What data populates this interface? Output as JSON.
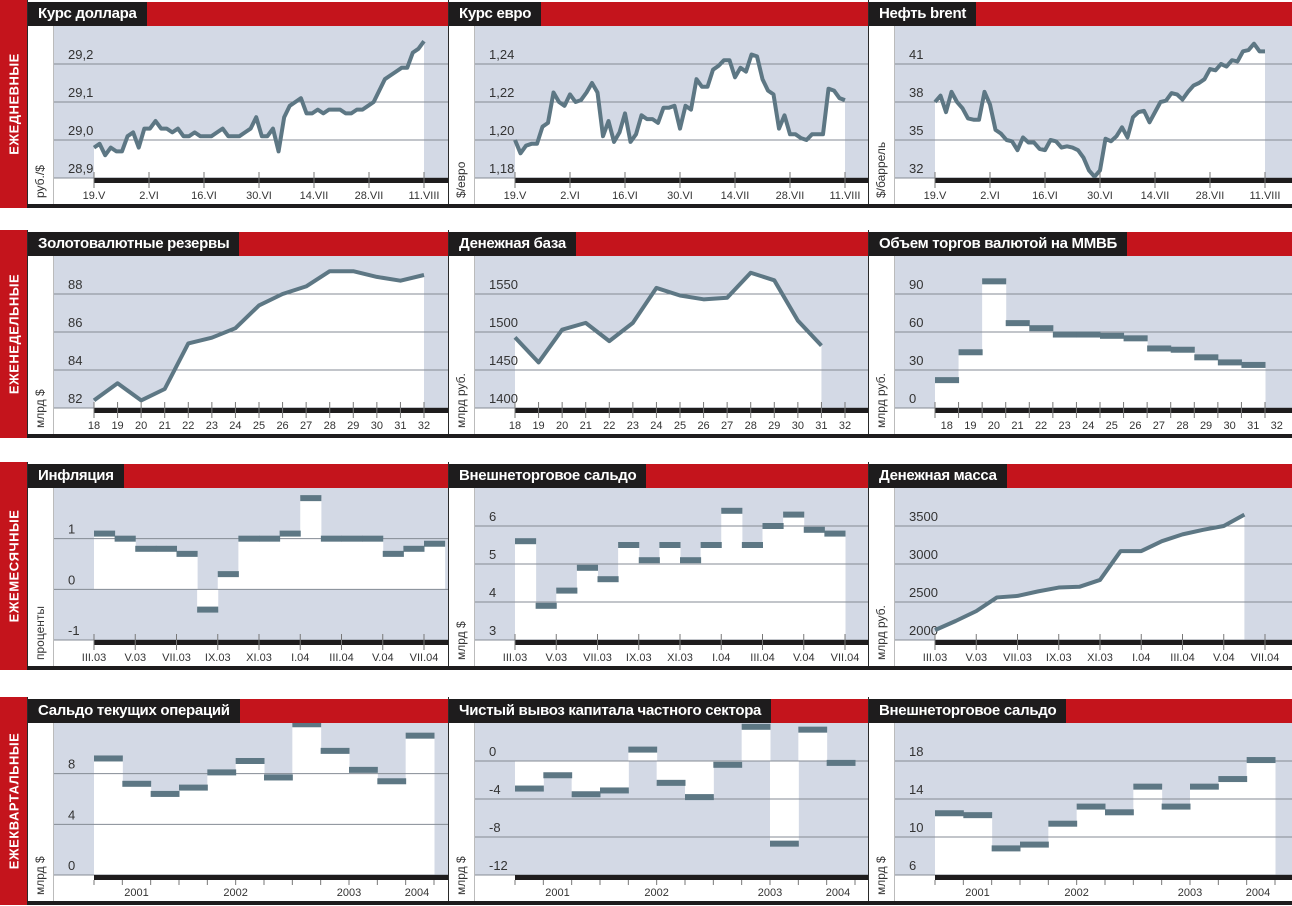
{
  "colors": {
    "band": "#c4141c",
    "title_bg": "#1e1c1d",
    "plot_bg": "#d3d9e5",
    "series": "#5d7784",
    "grid": "#858b94",
    "axis": "#1e1c1d"
  },
  "rows": [
    {
      "label": "ЕЖЕДНЕВНЫЕ"
    },
    {
      "label": "ЕЖЕНЕДЕЛЬНЫЕ"
    },
    {
      "label": "ЕЖЕМЕСЯЧНЫЕ"
    },
    {
      "label": "ЕЖЕКВАРТАЛЬНЫЕ"
    }
  ],
  "chart_data": [
    {
      "title": "Курс доллара",
      "ylabel": "руб./$",
      "type": "line",
      "xdomain": [
        0,
        84
      ],
      "x_even": true,
      "values": [
        28.98,
        28.99,
        28.96,
        28.98,
        28.97,
        28.97,
        29.01,
        29.02,
        28.98,
        29.03,
        29.03,
        29.05,
        29.03,
        29.03,
        29.02,
        29.03,
        29.01,
        29.01,
        29.02,
        29.01,
        29.01,
        29.01,
        29.02,
        29.03,
        29.01,
        29.01,
        29.01,
        29.02,
        29.03,
        29.06,
        29.01,
        29.01,
        29.03,
        28.97,
        29.06,
        29.09,
        29.1,
        29.11,
        29.07,
        29.07,
        29.08,
        29.07,
        29.08,
        29.08,
        29.08,
        29.07,
        29.07,
        29.08,
        29.08,
        29.09,
        29.1,
        29.13,
        29.16,
        29.17,
        29.18,
        29.19,
        29.19,
        29.23,
        29.24,
        29.26
      ],
      "ylim": [
        28.9,
        29.3
      ],
      "yticks": [
        {
          "value": 28.9,
          "label": "28,9"
        },
        {
          "value": 29.0,
          "label": "29,0"
        },
        {
          "value": 29.1,
          "label": "29,1"
        },
        {
          "value": 29.2,
          "label": "29,2"
        }
      ],
      "xticks": [
        {
          "x": 0,
          "label": "19.V"
        },
        {
          "x": 14,
          "label": "2.VI"
        },
        {
          "x": 28,
          "label": "16.VI"
        },
        {
          "x": 42,
          "label": "30.VI"
        },
        {
          "x": 56,
          "label": "14.VII"
        },
        {
          "x": 70,
          "label": "28.VII"
        },
        {
          "x": 84,
          "label": "11.VIII"
        }
      ]
    },
    {
      "title": "Курс евро",
      "ylabel": "$/евро",
      "type": "line",
      "xdomain": [
        0,
        84
      ],
      "x_even": true,
      "values": [
        1.2,
        1.193,
        1.197,
        1.198,
        1.198,
        1.207,
        1.209,
        1.225,
        1.22,
        1.218,
        1.224,
        1.22,
        1.221,
        1.225,
        1.23,
        1.225,
        1.202,
        1.21,
        1.199,
        1.204,
        1.214,
        1.199,
        1.203,
        1.213,
        1.211,
        1.211,
        1.209,
        1.217,
        1.217,
        1.218,
        1.206,
        1.218,
        1.216,
        1.232,
        1.228,
        1.228,
        1.237,
        1.239,
        1.242,
        1.242,
        1.233,
        1.238,
        1.236,
        1.245,
        1.244,
        1.232,
        1.226,
        1.224,
        1.206,
        1.213,
        1.203,
        1.203,
        1.201,
        1.2,
        1.203,
        1.203,
        1.203,
        1.227,
        1.226,
        1.222,
        1.221
      ],
      "ylim": [
        1.18,
        1.26
      ],
      "yticks": [
        {
          "value": 1.18,
          "label": "1,18"
        },
        {
          "value": 1.2,
          "label": "1,20"
        },
        {
          "value": 1.22,
          "label": "1,22"
        },
        {
          "value": 1.24,
          "label": "1,24"
        }
      ],
      "xticks": [
        {
          "x": 0,
          "label": "19.V"
        },
        {
          "x": 14,
          "label": "2.VI"
        },
        {
          "x": 28,
          "label": "16.VI"
        },
        {
          "x": 42,
          "label": "30.VI"
        },
        {
          "x": 56,
          "label": "14.VII"
        },
        {
          "x": 70,
          "label": "28.VII"
        },
        {
          "x": 84,
          "label": "11.VIII"
        }
      ]
    },
    {
      "title": "Нефть brent",
      "ylabel": "$/баррель",
      "type": "line",
      "xdomain": [
        0,
        84
      ],
      "x_even": true,
      "values": [
        38.0,
        38.5,
        37.2,
        38.8,
        38.0,
        37.5,
        36.7,
        36.6,
        36.6,
        38.8,
        37.8,
        35.8,
        35.5,
        35.0,
        34.9,
        34.2,
        35.2,
        34.8,
        34.8,
        34.3,
        34.2,
        35.0,
        34.9,
        34.4,
        34.5,
        34.4,
        34.2,
        33.6,
        32.6,
        32.1,
        32.6,
        35.1,
        34.9,
        35.3,
        36.0,
        35.2,
        36.8,
        37.2,
        37.3,
        36.4,
        37.2,
        38.0,
        38.1,
        38.7,
        38.6,
        38.2,
        38.8,
        39.3,
        39.5,
        39.8,
        40.6,
        40.5,
        41.0,
        40.8,
        41.3,
        41.2,
        42.0,
        42.1,
        42.6,
        42.0,
        42.0
      ],
      "ylim": [
        32,
        44
      ],
      "yticks": [
        {
          "value": 32,
          "label": "32"
        },
        {
          "value": 35,
          "label": "35"
        },
        {
          "value": 38,
          "label": "38"
        },
        {
          "value": 41,
          "label": "41"
        }
      ],
      "xticks": [
        {
          "x": 0,
          "label": "19.V"
        },
        {
          "x": 14,
          "label": "2.VI"
        },
        {
          "x": 28,
          "label": "16.VI"
        },
        {
          "x": 42,
          "label": "30.VI"
        },
        {
          "x": 56,
          "label": "14.VII"
        },
        {
          "x": 70,
          "label": "28.VII"
        },
        {
          "x": 84,
          "label": "11.VIII"
        }
      ]
    },
    {
      "title": "Золотовалютные резервы",
      "ylabel": "млрд $",
      "type": "line",
      "xdomain": [
        18,
        32
      ],
      "x_start": 18,
      "values": [
        82.4,
        83.3,
        82.4,
        83.0,
        85.4,
        85.7,
        86.2,
        87.4,
        88.0,
        88.4,
        89.2,
        89.2,
        88.9,
        88.7,
        89.0
      ],
      "ylim": [
        82,
        90
      ],
      "yticks": [
        {
          "value": 82,
          "label": "82"
        },
        {
          "value": 84,
          "label": "84"
        },
        {
          "value": 86,
          "label": "86"
        },
        {
          "value": 88,
          "label": "88"
        }
      ],
      "xticks": [
        {
          "x": 18,
          "label": "18"
        },
        {
          "x": 19,
          "label": "19"
        },
        {
          "x": 20,
          "label": "20"
        },
        {
          "x": 21,
          "label": "21"
        },
        {
          "x": 22,
          "label": "22"
        },
        {
          "x": 23,
          "label": "23"
        },
        {
          "x": 24,
          "label": "24"
        },
        {
          "x": 25,
          "label": "25"
        },
        {
          "x": 26,
          "label": "26"
        },
        {
          "x": 27,
          "label": "27"
        },
        {
          "x": 28,
          "label": "28"
        },
        {
          "x": 29,
          "label": "29"
        },
        {
          "x": 30,
          "label": "30"
        },
        {
          "x": 31,
          "label": "31"
        },
        {
          "x": 32,
          "label": "32"
        }
      ]
    },
    {
      "title": "Денежная база",
      "ylabel": "млрд руб.",
      "type": "line",
      "xdomain": [
        18,
        32
      ],
      "x_start": 18,
      "values": [
        1493,
        1460,
        1503,
        1512,
        1488,
        1512,
        1558,
        1548,
        1543,
        1545,
        1578,
        1568,
        1515,
        1482
      ],
      "ylim": [
        1400,
        1600
      ],
      "yticks": [
        {
          "value": 1400,
          "label": "1400"
        },
        {
          "value": 1450,
          "label": "1450"
        },
        {
          "value": 1500,
          "label": "1500"
        },
        {
          "value": 1550,
          "label": "1550"
        }
      ],
      "xticks": [
        {
          "x": 18,
          "label": "18"
        },
        {
          "x": 19,
          "label": "19"
        },
        {
          "x": 20,
          "label": "20"
        },
        {
          "x": 21,
          "label": "21"
        },
        {
          "x": 22,
          "label": "22"
        },
        {
          "x": 23,
          "label": "23"
        },
        {
          "x": 24,
          "label": "24"
        },
        {
          "x": 25,
          "label": "25"
        },
        {
          "x": 26,
          "label": "26"
        },
        {
          "x": 27,
          "label": "27"
        },
        {
          "x": 28,
          "label": "28"
        },
        {
          "x": 29,
          "label": "29"
        },
        {
          "x": 30,
          "label": "30"
        },
        {
          "x": 31,
          "label": "31"
        },
        {
          "x": 32,
          "label": "32"
        }
      ]
    },
    {
      "title": "Объем торгов валютой на ММВБ",
      "ylabel": "млрд руб.",
      "type": "step",
      "xdomain": [
        18,
        32
      ],
      "x_start": 18,
      "step_label_offset": 0.5,
      "values": [
        22,
        44,
        100,
        67,
        63,
        58,
        58,
        57,
        55,
        47,
        46,
        40,
        36,
        34
      ],
      "ylim": [
        0,
        120
      ],
      "yticks": [
        {
          "value": 0,
          "label": "0"
        },
        {
          "value": 30,
          "label": "30"
        },
        {
          "value": 60,
          "label": "60"
        },
        {
          "value": 90,
          "label": "90"
        }
      ],
      "xticks": [
        {
          "x": 18.5,
          "label": "18"
        },
        {
          "x": 19.5,
          "label": "19"
        },
        {
          "x": 20.5,
          "label": "20"
        },
        {
          "x": 21.5,
          "label": "21"
        },
        {
          "x": 22.5,
          "label": "22"
        },
        {
          "x": 23.5,
          "label": "23"
        },
        {
          "x": 24.5,
          "label": "24"
        },
        {
          "x": 25.5,
          "label": "25"
        },
        {
          "x": 26.5,
          "label": "26"
        },
        {
          "x": 27.5,
          "label": "27"
        },
        {
          "x": 28.5,
          "label": "28"
        },
        {
          "x": 29.5,
          "label": "29"
        },
        {
          "x": 30.5,
          "label": "30"
        },
        {
          "x": 31.5,
          "label": "31"
        },
        {
          "x": 32.5,
          "label": "32"
        }
      ]
    },
    {
      "title": "Инфляция",
      "ylabel": "проценты",
      "type": "step",
      "xdomain": [
        0,
        16
      ],
      "x_start": 0,
      "values": [
        1.1,
        1.0,
        0.8,
        0.8,
        0.7,
        -0.4,
        0.3,
        1.0,
        1.0,
        1.1,
        1.8,
        1.0,
        1.0,
        1.0,
        0.7,
        0.8,
        0.9
      ],
      "ylim": [
        -1,
        2
      ],
      "yticks": [
        {
          "value": -1,
          "label": "-1"
        },
        {
          "value": 0,
          "label": "0"
        },
        {
          "value": 1,
          "label": "1"
        }
      ],
      "xticks": [
        {
          "x": 0,
          "label": "III.03"
        },
        {
          "x": 2,
          "label": "V.03"
        },
        {
          "x": 4,
          "label": "VII.03"
        },
        {
          "x": 6,
          "label": "IX.03"
        },
        {
          "x": 8,
          "label": "XI.03"
        },
        {
          "x": 10,
          "label": "I.04"
        },
        {
          "x": 12,
          "label": "III.04"
        },
        {
          "x": 14,
          "label": "V.04"
        },
        {
          "x": 16,
          "label": "VII.04"
        }
      ]
    },
    {
      "title": "Внешнеторговое сальдо",
      "ylabel": "млрд $",
      "type": "step",
      "xdomain": [
        0,
        16
      ],
      "x_start": 0,
      "values": [
        5.6,
        3.9,
        4.3,
        4.9,
        4.6,
        5.5,
        5.1,
        5.5,
        5.1,
        5.5,
        6.4,
        5.5,
        6.0,
        6.3,
        5.9,
        5.8
      ],
      "ylim": [
        3,
        7
      ],
      "yticks": [
        {
          "value": 3,
          "label": "3"
        },
        {
          "value": 4,
          "label": "4"
        },
        {
          "value": 5,
          "label": "5"
        },
        {
          "value": 6,
          "label": "6"
        }
      ],
      "xticks": [
        {
          "x": 0,
          "label": "III.03"
        },
        {
          "x": 2,
          "label": "V.03"
        },
        {
          "x": 4,
          "label": "VII.03"
        },
        {
          "x": 6,
          "label": "IX.03"
        },
        {
          "x": 8,
          "label": "XI.03"
        },
        {
          "x": 10,
          "label": "I.04"
        },
        {
          "x": 12,
          "label": "III.04"
        },
        {
          "x": 14,
          "label": "V.04"
        },
        {
          "x": 16,
          "label": "VII.04"
        }
      ]
    },
    {
      "title": "Денежная масса",
      "ylabel": "млрд руб.",
      "type": "line",
      "xdomain": [
        0,
        16
      ],
      "x_start": 0,
      "values": [
        2130,
        2250,
        2380,
        2560,
        2580,
        2640,
        2690,
        2700,
        2790,
        3170,
        3170,
        3300,
        3390,
        3450,
        3500,
        3650
      ],
      "ylim": [
        2000,
        4000
      ],
      "yticks": [
        {
          "value": 2000,
          "label": "2000"
        },
        {
          "value": 2500,
          "label": "2500"
        },
        {
          "value": 3000,
          "label": "3000"
        },
        {
          "value": 3500,
          "label": "3500"
        }
      ],
      "xticks": [
        {
          "x": 0,
          "label": "III.03"
        },
        {
          "x": 2,
          "label": "V.03"
        },
        {
          "x": 4,
          "label": "VII.03"
        },
        {
          "x": 6,
          "label": "IX.03"
        },
        {
          "x": 8,
          "label": "XI.03"
        },
        {
          "x": 10,
          "label": "I.04"
        },
        {
          "x": 12,
          "label": "III.04"
        },
        {
          "x": 14,
          "label": "V.04"
        },
        {
          "x": 16,
          "label": "VII.04"
        }
      ]
    },
    {
      "title": "Сальдо текущих операций",
      "ylabel": "млрд $",
      "type": "step",
      "xdomain": [
        0,
        12
      ],
      "x_start": 0,
      "minor_ticks": true,
      "values": [
        9.2,
        7.2,
        6.4,
        6.9,
        8.1,
        9.0,
        7.7,
        11.9,
        9.8,
        8.3,
        7.4,
        11.0
      ],
      "ylim": [
        0,
        12
      ],
      "yticks": [
        {
          "value": 0,
          "label": "0"
        },
        {
          "value": 4,
          "label": "4"
        },
        {
          "value": 8,
          "label": "8"
        }
      ],
      "xticks": [
        {
          "x": 1.5,
          "label": "2001"
        },
        {
          "x": 5,
          "label": "2002"
        },
        {
          "x": 9,
          "label": "2003"
        },
        {
          "x": 11.4,
          "label": "2004"
        }
      ]
    },
    {
      "title": "Чистый вывоз капитала частного сектора",
      "ylabel": "млрд $",
      "type": "step",
      "xdomain": [
        0,
        12
      ],
      "x_start": 0,
      "minor_ticks": true,
      "values": [
        -2.9,
        -1.5,
        -3.5,
        -3.1,
        1.2,
        -2.3,
        -3.8,
        -0.4,
        3.6,
        -8.7,
        3.3,
        -0.2
      ],
      "ylim": [
        -12,
        4
      ],
      "yticks": [
        {
          "value": -12,
          "label": "-12"
        },
        {
          "value": -8,
          "label": "-8"
        },
        {
          "value": -4,
          "label": "-4"
        },
        {
          "value": 0,
          "label": "0"
        }
      ],
      "xticks": [
        {
          "x": 1.5,
          "label": "2001"
        },
        {
          "x": 5,
          "label": "2002"
        },
        {
          "x": 9,
          "label": "2003"
        },
        {
          "x": 11.4,
          "label": "2004"
        }
      ]
    },
    {
      "title": "Внешнеторговое сальдо",
      "ylabel": "млрд $",
      "type": "step",
      "xdomain": [
        0,
        12
      ],
      "x_start": 0,
      "minor_ticks": true,
      "values": [
        12.5,
        12.3,
        8.8,
        9.2,
        11.4,
        13.2,
        12.6,
        15.3,
        13.2,
        15.3,
        16.1,
        18.1
      ],
      "ylim": [
        6,
        22
      ],
      "yticks": [
        {
          "value": 6,
          "label": "6"
        },
        {
          "value": 10,
          "label": "10"
        },
        {
          "value": 14,
          "label": "14"
        },
        {
          "value": 18,
          "label": "18"
        }
      ],
      "xticks": [
        {
          "x": 1.5,
          "label": "2001"
        },
        {
          "x": 5,
          "label": "2002"
        },
        {
          "x": 9,
          "label": "2003"
        },
        {
          "x": 11.4,
          "label": "2004"
        }
      ]
    }
  ]
}
